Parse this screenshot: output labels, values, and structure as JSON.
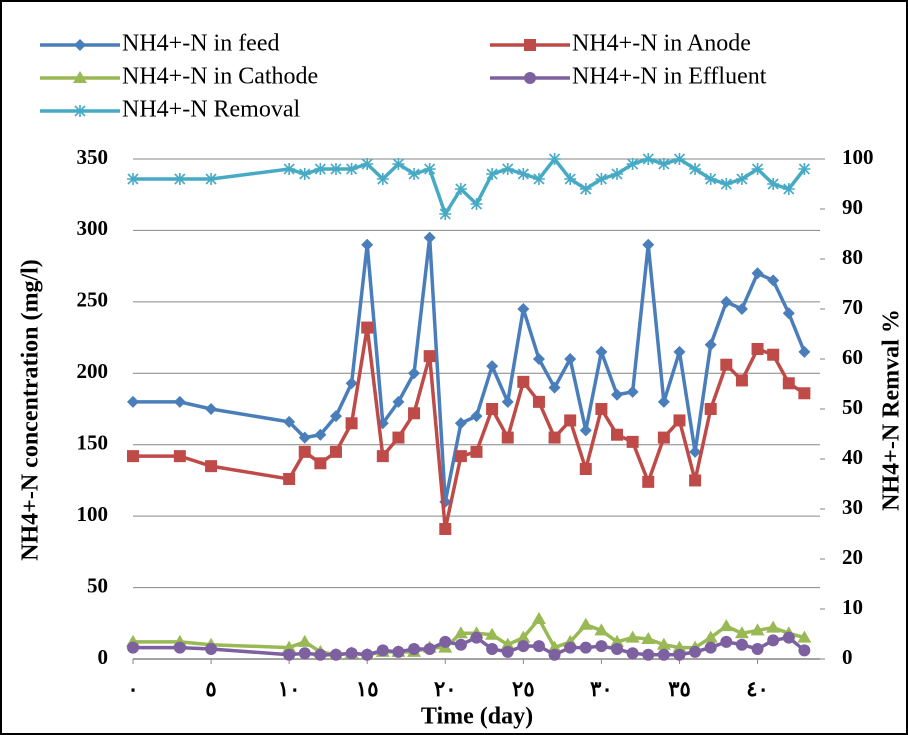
{
  "chart_data": {
    "type": "line",
    "x_label": "Time (day)",
    "y_label": "NH4+-N concentration (mg/l)",
    "y2_label": "NH4+-N Remval %",
    "x": [
      0,
      3,
      5,
      10,
      11,
      12,
      13,
      14,
      15,
      16,
      17,
      18,
      19,
      20,
      21,
      22,
      23,
      24,
      25,
      26,
      27,
      28,
      29,
      30,
      31,
      32,
      33,
      34,
      35,
      36,
      37,
      38,
      39,
      40,
      41,
      42,
      43
    ],
    "xlim": [
      0,
      44
    ],
    "xticks": [
      {
        "value": 0,
        "label": "٠"
      },
      {
        "value": 5,
        "label": "٥"
      },
      {
        "value": 10,
        "label": "١٠"
      },
      {
        "value": 15,
        "label": "١٥"
      },
      {
        "value": 20,
        "label": "٢٠"
      },
      {
        "value": 25,
        "label": "٢٥"
      },
      {
        "value": 30,
        "label": "٣٠"
      },
      {
        "value": 35,
        "label": "٣٥"
      },
      {
        "value": 40,
        "label": "٤٠"
      }
    ],
    "ylim": [
      0,
      350
    ],
    "yticks": [
      0,
      50,
      100,
      150,
      200,
      250,
      300,
      350
    ],
    "y2lim": [
      0,
      100
    ],
    "y2ticks": [
      0,
      10,
      20,
      30,
      40,
      50,
      60,
      70,
      80,
      90,
      100
    ],
    "grid": true,
    "legend": "top",
    "series": [
      {
        "name": "NH4+-N in feed",
        "color": "#4a7ebb",
        "marker": "diamond",
        "values": [
          180,
          180,
          175,
          166,
          155,
          157,
          170,
          193,
          290,
          165,
          180,
          200,
          295,
          110,
          165,
          170,
          205,
          180,
          245,
          210,
          190,
          210,
          160,
          215,
          185,
          187,
          290,
          180,
          215,
          145,
          220,
          250,
          245,
          270,
          265,
          242,
          215
        ]
      },
      {
        "name": "NH4+-N in Anode",
        "color": "#be4b48",
        "marker": "square",
        "values": [
          142,
          142,
          135,
          126,
          145,
          137,
          145,
          165,
          232,
          142,
          155,
          172,
          212,
          91,
          142,
          145,
          175,
          155,
          194,
          180,
          155,
          167,
          133,
          175,
          157,
          152,
          124,
          155,
          167,
          125,
          175,
          206,
          195,
          217,
          213,
          193,
          186
        ]
      },
      {
        "name": "NH4+-N in Cathode",
        "color": "#98b954",
        "marker": "triangle",
        "values": [
          12,
          12,
          10,
          8,
          12,
          5,
          3,
          4,
          3,
          5,
          5,
          5,
          8,
          8,
          18,
          18,
          17,
          10,
          15,
          28,
          8,
          12,
          24,
          20,
          12,
          15,
          14,
          10,
          8,
          8,
          15,
          23,
          18,
          20,
          22,
          18,
          15
        ]
      },
      {
        "name": "NH4+-N in Effluent",
        "color": "#7d60a0",
        "marker": "circle",
        "values": [
          8,
          8,
          7,
          3,
          4,
          3,
          3,
          4,
          3,
          6,
          5,
          7,
          7,
          12,
          10,
          15,
          7,
          5,
          9,
          9,
          3,
          8,
          8,
          9,
          7,
          4,
          3,
          3,
          3,
          5,
          8,
          12,
          10,
          7,
          13,
          15,
          6
        ]
      },
      {
        "name": "NH4+-N Removal",
        "color": "#46aac5",
        "marker": "star",
        "axis": "y2",
        "values": [
          96,
          96,
          96,
          98,
          97,
          98,
          98,
          98,
          99,
          96,
          99,
          97,
          98,
          89,
          94,
          91,
          97,
          98,
          97,
          96,
          100,
          96,
          94,
          96,
          97,
          99,
          100,
          99,
          100,
          98,
          96,
          95,
          96,
          98,
          95,
          94,
          98
        ]
      }
    ]
  }
}
